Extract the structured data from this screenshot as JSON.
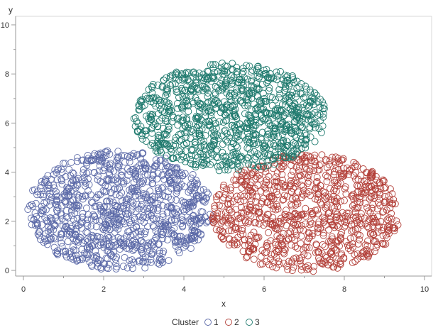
{
  "chart_data": {
    "type": "scatter",
    "title": "",
    "xlabel": "x",
    "ylabel": "y",
    "xlim": [
      0,
      10
    ],
    "ylim": [
      0,
      10
    ],
    "x_ticks": [
      "0",
      "2",
      "4",
      "6",
      "8",
      "10"
    ],
    "y_ticks": [
      "0",
      "2",
      "4",
      "6",
      "8",
      "10"
    ],
    "grid": false,
    "marker": "open-circle",
    "legend": {
      "title": "Cluster",
      "placement": "bottom-center",
      "entries": [
        "1",
        "2",
        "3"
      ]
    },
    "series": [
      {
        "name": "1",
        "color": "#5c6aa8",
        "region": {
          "shape": "ellipse",
          "center": [
            2.4,
            2.45
          ],
          "radius": [
            2.3,
            2.45
          ],
          "approx_points": 1000
        }
      },
      {
        "name": "2",
        "color": "#b3413a",
        "region": {
          "shape": "ellipse",
          "center": [
            7.05,
            2.35
          ],
          "radius": [
            2.35,
            2.4
          ],
          "approx_points": 900
        }
      },
      {
        "name": "3",
        "color": "#1f7a6e",
        "region": {
          "shape": "ellipse",
          "center": [
            5.15,
            6.25
          ],
          "radius": [
            2.4,
            2.2
          ],
          "approx_points": 1000
        }
      }
    ]
  }
}
